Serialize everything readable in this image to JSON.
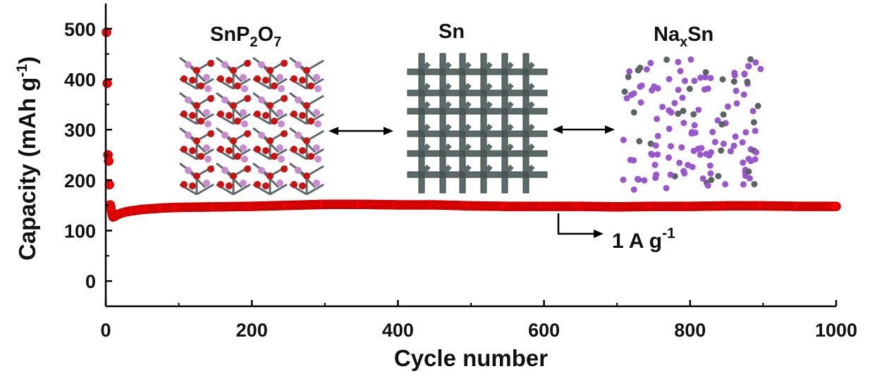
{
  "chart_data": {
    "type": "scatter",
    "xlabel": "Cycle number",
    "ylabel_main": "Capacity (mAh g",
    "ylabel_sup": "-1",
    "ylabel_tail": ")",
    "xlim": [
      0,
      1000
    ],
    "ylim": [
      -50,
      550
    ],
    "x_ticks": [
      0,
      200,
      400,
      600,
      800,
      1000
    ],
    "y_ticks": [
      0,
      100,
      200,
      300,
      400,
      500
    ],
    "grid": false,
    "marker_color": "#ff0000",
    "marker_edge": "#cc0000",
    "series": [
      {
        "points": [
          [
            1,
            493
          ],
          [
            2,
            392
          ],
          [
            3,
            250
          ],
          [
            4,
            238
          ],
          [
            5,
            191
          ],
          [
            6,
            151
          ],
          [
            7,
            146
          ],
          [
            8,
            138
          ],
          [
            9,
            132
          ],
          [
            10,
            127
          ],
          [
            12,
            128
          ],
          [
            15,
            131
          ],
          [
            20,
            134
          ],
          [
            30,
            138
          ],
          [
            40,
            140
          ],
          [
            50,
            142
          ],
          [
            60,
            143
          ],
          [
            80,
            145
          ],
          [
            100,
            146
          ],
          [
            150,
            147
          ],
          [
            200,
            148
          ],
          [
            250,
            150
          ],
          [
            300,
            152
          ],
          [
            350,
            152
          ],
          [
            400,
            151
          ],
          [
            450,
            151
          ],
          [
            500,
            149
          ],
          [
            550,
            148
          ],
          [
            600,
            148
          ],
          [
            650,
            148
          ],
          [
            700,
            147
          ],
          [
            750,
            148
          ],
          [
            800,
            148
          ],
          [
            850,
            149
          ],
          [
            900,
            149
          ],
          [
            950,
            148
          ],
          [
            1000,
            148
          ]
        ]
      }
    ],
    "annotation": {
      "text_main": "1 A g",
      "text_sup": "-1"
    },
    "insets": [
      {
        "label_main": "SnP",
        "label_sub1": "2",
        "label_mid": "O",
        "label_sub2": "7",
        "colors": {
          "atom1": "#cc1111",
          "atom2": "#c98bd0",
          "bond": "#5c6a6a"
        }
      },
      {
        "label_main": "Sn",
        "colors": {
          "bond": "#5c6a6a"
        }
      },
      {
        "label_main": "Na",
        "label_sub1": "x",
        "label_mid": "Sn",
        "colors": {
          "na": "#9a55d0",
          "sn": "#5a6464"
        }
      }
    ]
  }
}
